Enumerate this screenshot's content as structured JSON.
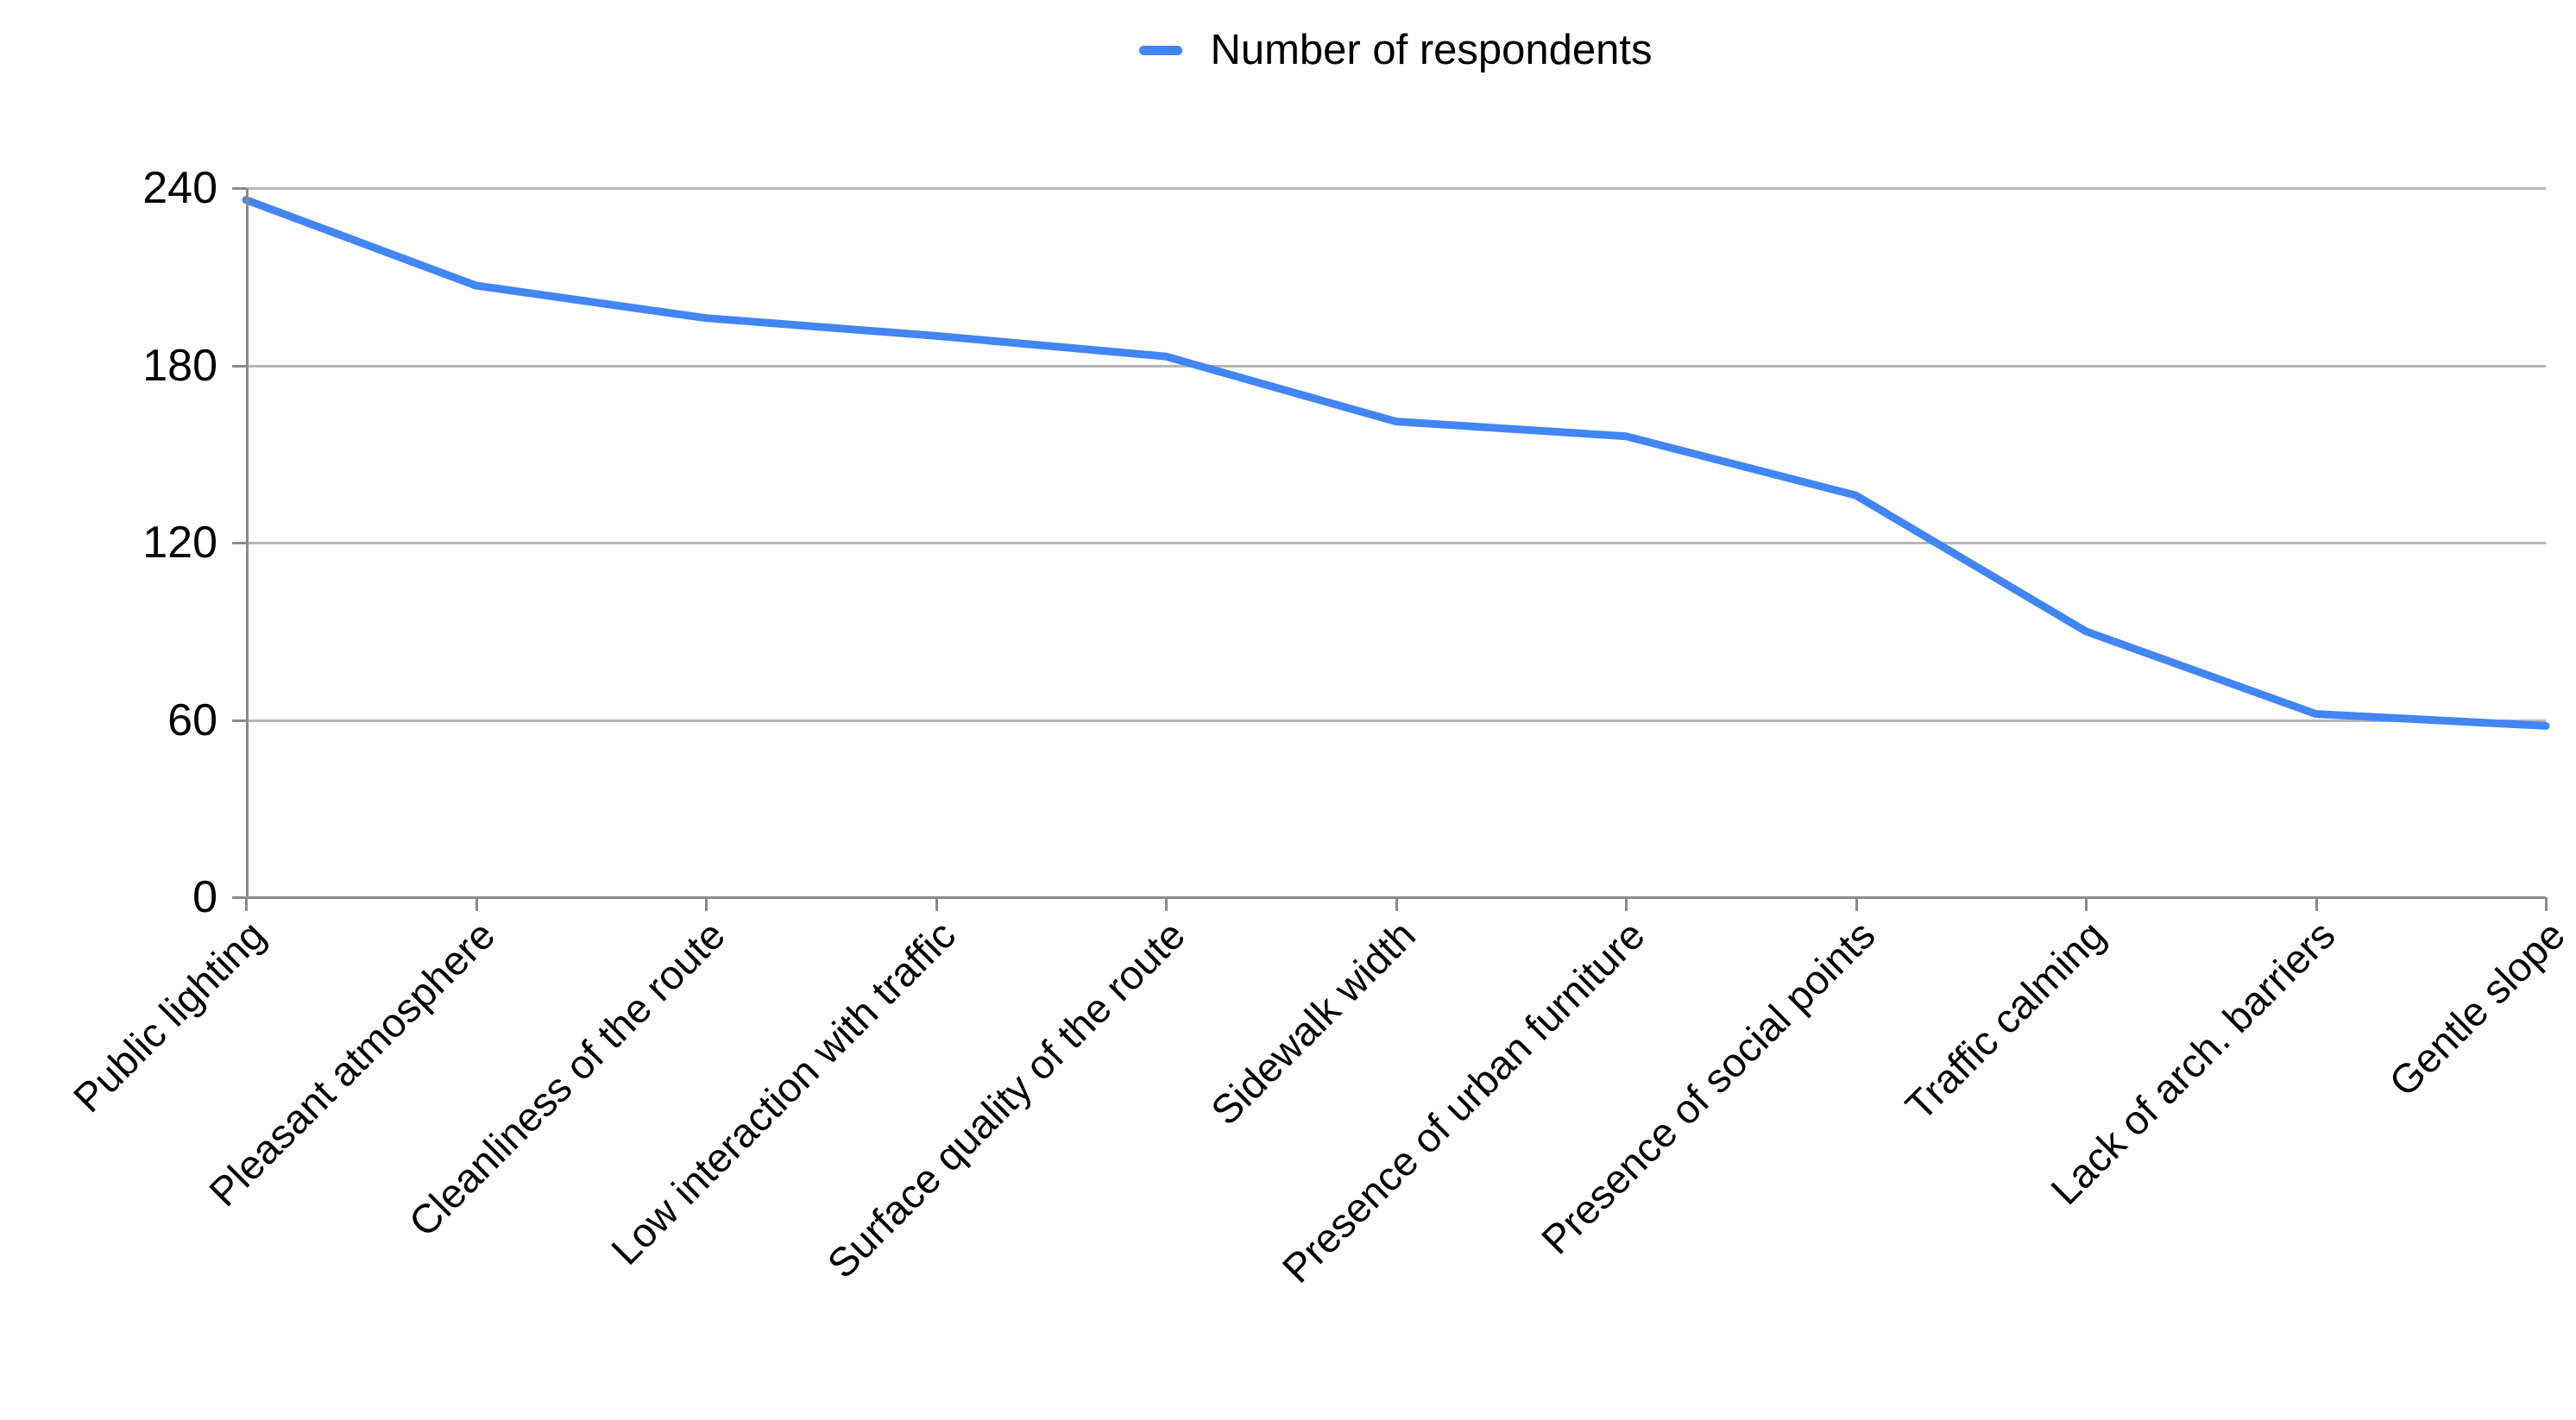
{
  "legend": {
    "label": "Number of respondents"
  },
  "chart_data": {
    "type": "line",
    "title": "",
    "xlabel": "",
    "ylabel": "",
    "categories": [
      "Public lighting",
      "Pleasant atmosphere",
      "Cleanliness of the route",
      "Low interaction with traffic",
      "Surface quality of the route",
      "Sidewalk width",
      "Presence of urban furniture",
      "Presence of social points",
      "Traffic calming",
      "Lack of arch. barriers",
      "Gentle slope"
    ],
    "series": [
      {
        "name": "Number of respondents",
        "color": "#4285f4",
        "values": [
          236,
          207,
          196,
          190,
          183,
          161,
          156,
          136,
          90,
          62,
          58
        ]
      }
    ],
    "ylim": [
      0,
      240
    ],
    "yticks": [
      0,
      60,
      120,
      180,
      240
    ],
    "grid": true,
    "legend_position": "top-center",
    "x_label_rotation_deg": 45,
    "colors": {
      "gridline": "#b7b7b7",
      "axis": "#8a8a8a",
      "text": "#000000",
      "background": "#ffffff"
    }
  }
}
